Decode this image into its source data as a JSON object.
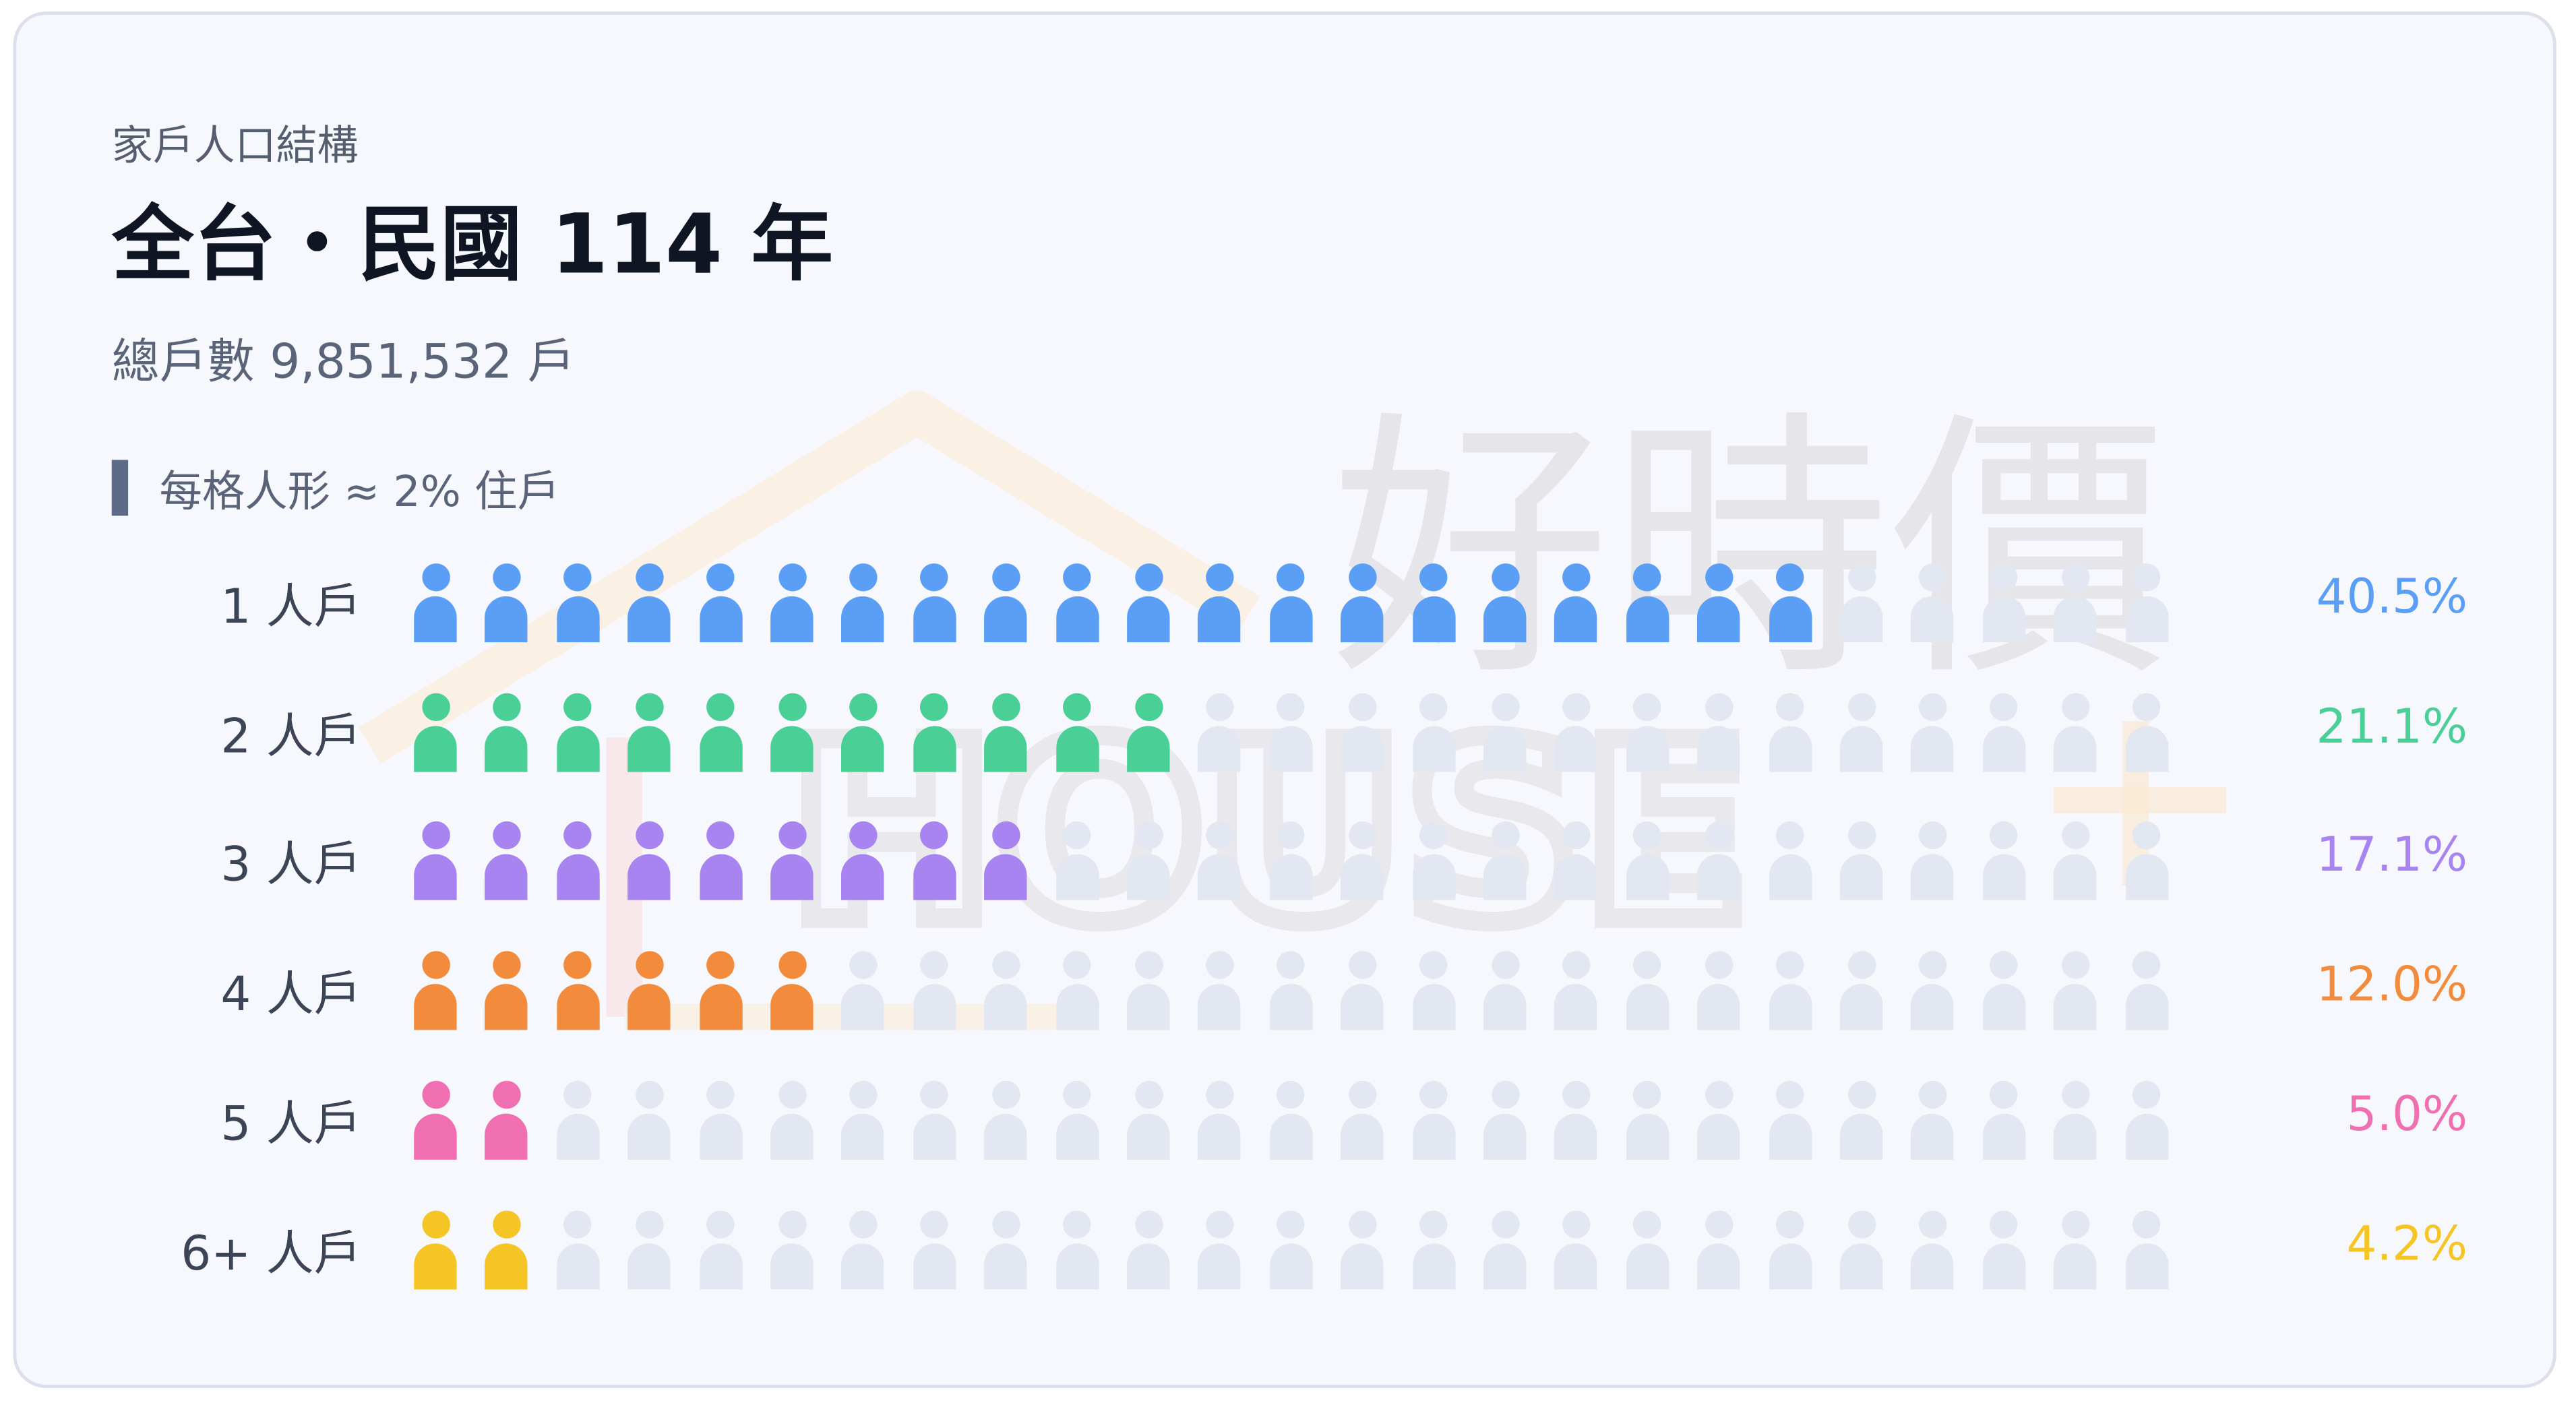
{
  "header": {
    "subtitle": "家戶人口結構",
    "title": "全台・民國 114 年",
    "total": "總戶數 9,851,532 戶"
  },
  "legend": {
    "text": "每格人形 ≈ 2% 住戶"
  },
  "watermark": {
    "text": "好時價 HOUSE+"
  },
  "chart_data": {
    "type": "waffle",
    "units_per_row": 25,
    "unit_value_percent": 2,
    "empty_color": "#e2e7f1",
    "categories": [
      "1 人戶",
      "2 人戶",
      "3 人戶",
      "4 人戶",
      "5 人戶",
      "6+ 人戶"
    ],
    "rows": [
      {
        "label": "1 人戶",
        "percent_label": "40.5%",
        "value": 40.5,
        "filled": 20,
        "color": "#5b9ef5"
      },
      {
        "label": "2 人戶",
        "percent_label": "21.1%",
        "value": 21.1,
        "filled": 11,
        "color": "#4acf96"
      },
      {
        "label": "3 人戶",
        "percent_label": "17.1%",
        "value": 17.1,
        "filled": 9,
        "color": "#a884f0"
      },
      {
        "label": "4 人戶",
        "percent_label": "12.0%",
        "value": 12.0,
        "filled": 6,
        "color": "#f28b3c"
      },
      {
        "label": "5 人戶",
        "percent_label": "5.0%",
        "value": 5.0,
        "filled": 2,
        "color": "#ef6fb0"
      },
      {
        "label": "6+ 人戶",
        "percent_label": "4.2%",
        "value": 4.2,
        "filled": 2,
        "color": "#f5c525"
      }
    ]
  }
}
